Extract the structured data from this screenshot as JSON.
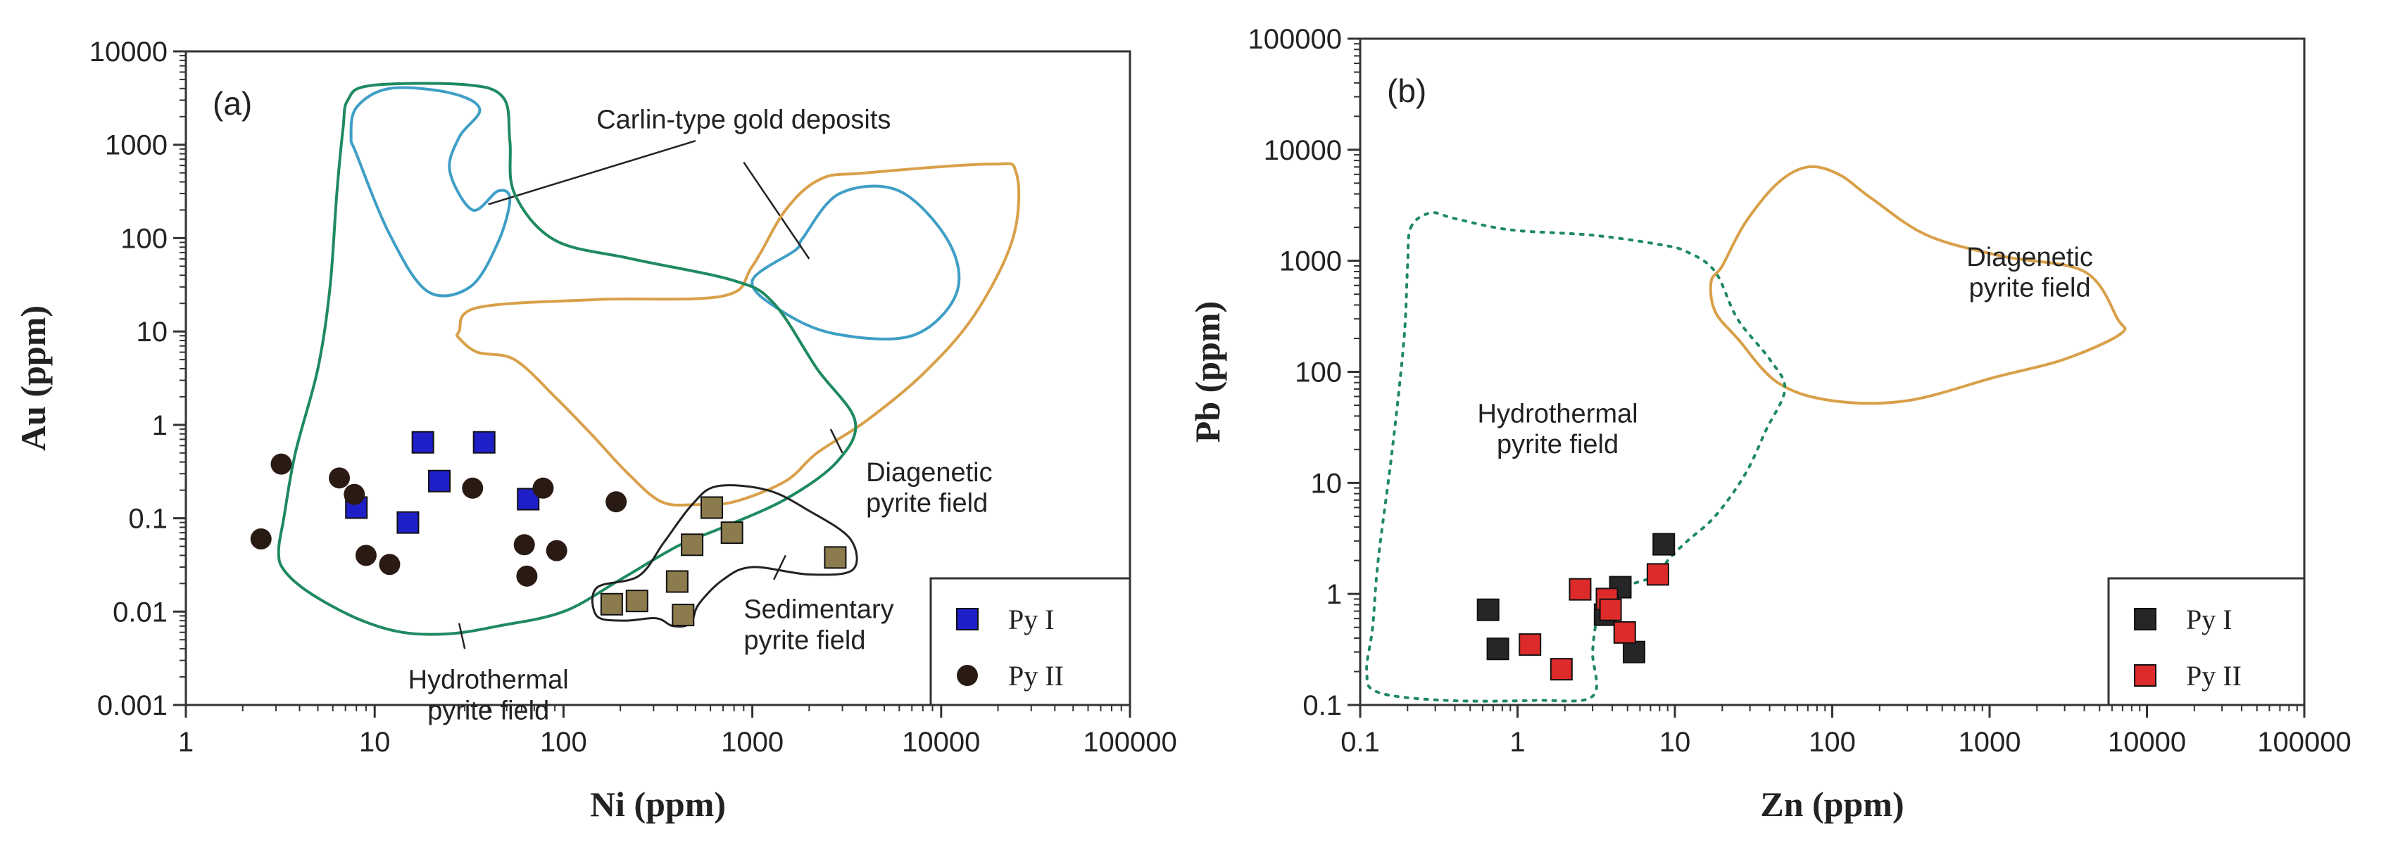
{
  "chart_data": [
    {
      "panel_label": "(a)",
      "type": "scatter",
      "xlabel": "Ni (ppm)",
      "ylabel": "Au (ppm)",
      "x_scale": "log",
      "y_scale": "log",
      "xlim": [
        1,
        100000
      ],
      "ylim": [
        0.001,
        10000
      ],
      "x_ticks": [
        "1",
        "10",
        "100",
        "1000",
        "10000",
        "100000"
      ],
      "y_ticks": [
        "0.001",
        "0.01",
        "0.1",
        "1",
        "10",
        "100",
        "1000",
        "10000"
      ],
      "legend_position": "bottom-right",
      "legend": [
        "Py I",
        "Py II"
      ],
      "series": [
        {
          "name": "Py I",
          "marker": "square",
          "color": "#1f1fc8",
          "points": [
            [
              8,
              0.13
            ],
            [
              15,
              0.09
            ],
            [
              18,
              0.65
            ],
            [
              22,
              0.25
            ],
            [
              38,
              0.65
            ],
            [
              65,
              0.16
            ]
          ]
        },
        {
          "name": "Py II",
          "marker": "circle",
          "color": "#2a1a14",
          "points": [
            [
              2.5,
              0.06
            ],
            [
              3.2,
              0.38
            ],
            [
              6.5,
              0.27
            ],
            [
              7.8,
              0.18
            ],
            [
              9,
              0.04
            ],
            [
              12,
              0.032
            ],
            [
              33,
              0.21
            ],
            [
              62,
              0.052
            ],
            [
              64,
              0.024
            ],
            [
              78,
              0.21
            ],
            [
              92,
              0.045
            ],
            [
              190,
              0.15
            ]
          ]
        },
        {
          "name": "",
          "marker": "square",
          "color": "#8c7b4c",
          "points": [
            [
              180,
              0.012
            ],
            [
              245,
              0.013
            ],
            [
              400,
              0.021
            ],
            [
              430,
              0.0092
            ],
            [
              480,
              0.052
            ],
            [
              610,
              0.13
            ],
            [
              780,
              0.07
            ],
            [
              2750,
              0.038
            ]
          ]
        }
      ],
      "fields": [
        {
          "label": "Carlin-type gold deposits",
          "color": "#3f9fc6"
        },
        {
          "label": "Diagenetic\npyrite field",
          "color": "#d9a04a"
        },
        {
          "label": "Hydrothermal\npyrite field",
          "color": "#1f8a60"
        },
        {
          "label": "Sedimentary\npyrite field",
          "color": "#222222"
        }
      ]
    },
    {
      "panel_label": "(b)",
      "type": "scatter",
      "xlabel": "Zn (ppm)",
      "ylabel": "Pb (ppm)",
      "x_scale": "log",
      "y_scale": "log",
      "xlim": [
        0.1,
        100000
      ],
      "ylim": [
        0.1,
        100000
      ],
      "x_ticks": [
        "0.1",
        "1",
        "10",
        "100",
        "1000",
        "10000",
        "100000"
      ],
      "y_ticks": [
        "0.1",
        "1",
        "10",
        "100",
        "1000",
        "10000",
        "100000"
      ],
      "legend_position": "bottom-right",
      "legend": [
        "Py I",
        "Py II"
      ],
      "series": [
        {
          "name": "Py I",
          "marker": "square",
          "color": "#262626",
          "points": [
            [
              0.65,
              0.72
            ],
            [
              0.75,
              0.32
            ],
            [
              3.6,
              0.65
            ],
            [
              4.5,
              1.15
            ],
            [
              5.5,
              0.3
            ],
            [
              8.5,
              2.8
            ]
          ]
        },
        {
          "name": "Py II",
          "marker": "square",
          "color": "#dd2a2a",
          "points": [
            [
              1.2,
              0.35
            ],
            [
              1.9,
              0.21
            ],
            [
              2.5,
              1.1
            ],
            [
              3.7,
              0.9
            ],
            [
              3.9,
              0.72
            ],
            [
              4.8,
              0.45
            ],
            [
              7.8,
              1.5
            ]
          ]
        }
      ],
      "fields": [
        {
          "label": "Diagenetic\npyrite field",
          "color": "#d9a04a"
        },
        {
          "label": "Hydrothermal\npyrite field",
          "color": "#1f8a60"
        }
      ]
    }
  ]
}
